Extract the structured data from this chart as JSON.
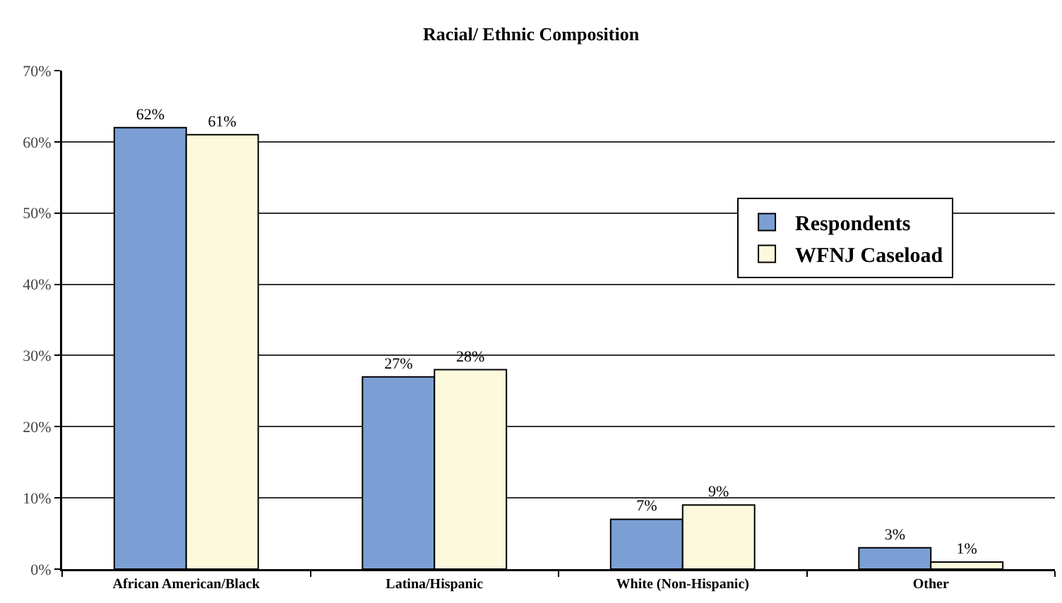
{
  "chart_data": {
    "type": "bar",
    "title": "Racial/ Ethnic Composition",
    "categories": [
      "African American/Black",
      "Latina/Hispanic",
      "White (Non-Hispanic)",
      "Other"
    ],
    "series": [
      {
        "name": "Respondents",
        "color": "#7b9fd4",
        "values": [
          62,
          27,
          7,
          3
        ],
        "value_labels": [
          "62%",
          "27%",
          "7%",
          "3%"
        ]
      },
      {
        "name": "WFNJ Caseload",
        "color": "#fdf9dc",
        "values": [
          61,
          28,
          9,
          1
        ],
        "value_labels": [
          "61%",
          "28%",
          "9%",
          "1%"
        ]
      }
    ],
    "ylim": [
      0,
      70
    ],
    "yticks": [
      {
        "value": 0,
        "label": "0%"
      },
      {
        "value": 10,
        "label": "10%"
      },
      {
        "value": 20,
        "label": "20%"
      },
      {
        "value": 30,
        "label": "30%"
      },
      {
        "value": 40,
        "label": "40%"
      },
      {
        "value": 50,
        "label": "50%"
      },
      {
        "value": 60,
        "label": "60%"
      },
      {
        "value": 70,
        "label": "70%"
      }
    ],
    "grid": "y",
    "legend": "right"
  }
}
